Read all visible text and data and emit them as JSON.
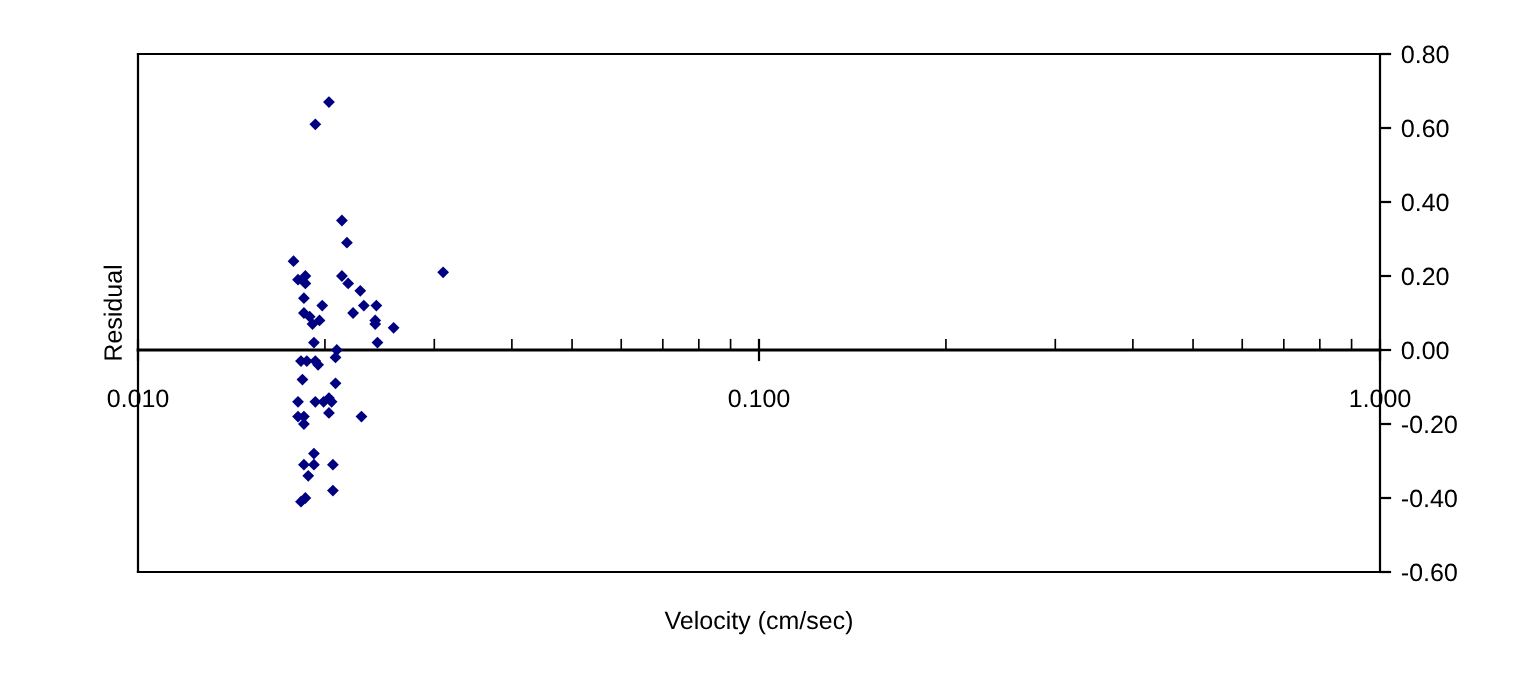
{
  "chart_data": {
    "type": "scatter",
    "xlabel": "Velocity (cm/sec)",
    "ylabel": "Residual",
    "log": "x",
    "xlim": [
      0.01,
      1.0
    ],
    "xticks": [
      {
        "value": 0.01,
        "label": "0.010"
      },
      {
        "value": 0.1,
        "label": "0.100"
      },
      {
        "value": 1.0,
        "label": "1.000"
      }
    ],
    "ylim": [
      -0.6,
      0.8
    ],
    "yticks": [
      {
        "value": -0.6,
        "label": "-0.60"
      },
      {
        "value": -0.4,
        "label": "-0.40"
      },
      {
        "value": -0.2,
        "label": "-0.20"
      },
      {
        "value": 0,
        "label": "0.00"
      },
      {
        "value": 0.2,
        "label": "0.20"
      },
      {
        "value": 0.4,
        "label": "0.40"
      },
      {
        "value": 0.6,
        "label": "0.60"
      },
      {
        "value": 0.8,
        "label": "0.80"
      }
    ],
    "grid": false,
    "legend": false,
    "marker": "diamond",
    "series": [
      {
        "color": "#000080",
        "x": [
          0.0203,
          0.0193,
          0.0213,
          0.0217,
          0.0178,
          0.031,
          0.0181,
          0.0186,
          0.0186,
          0.0213,
          0.0218,
          0.0228,
          0.0185,
          0.0198,
          0.0231,
          0.0242,
          0.0222,
          0.0185,
          0.0189,
          0.0191,
          0.0196,
          0.0241,
          0.0241,
          0.0258,
          0.0192,
          0.0243,
          0.0209,
          0.0208,
          0.0183,
          0.0187,
          0.0195,
          0.0193,
          0.0184,
          0.0208,
          0.0181,
          0.0193,
          0.0199,
          0.0203,
          0.0205,
          0.0181,
          0.0185,
          0.0185,
          0.0203,
          0.0229,
          0.0192,
          0.0185,
          0.0192,
          0.0206,
          0.0188,
          0.0206,
          0.0186,
          0.0183
        ],
        "values": [
          0.67,
          0.61,
          0.35,
          0.29,
          0.24,
          0.21,
          0.19,
          0.2,
          0.18,
          0.2,
          0.18,
          0.16,
          0.14,
          0.12,
          0.12,
          0.12,
          0.1,
          0.1,
          0.09,
          0.07,
          0.08,
          0.08,
          0.07,
          0.06,
          0.02,
          0.02,
          0.0,
          -0.02,
          -0.03,
          -0.03,
          -0.04,
          -0.03,
          -0.08,
          -0.09,
          -0.14,
          -0.14,
          -0.14,
          -0.13,
          -0.14,
          -0.18,
          -0.18,
          -0.2,
          -0.17,
          -0.18,
          -0.28,
          -0.31,
          -0.31,
          -0.31,
          -0.34,
          -0.38,
          -0.4,
          -0.41
        ]
      }
    ]
  }
}
